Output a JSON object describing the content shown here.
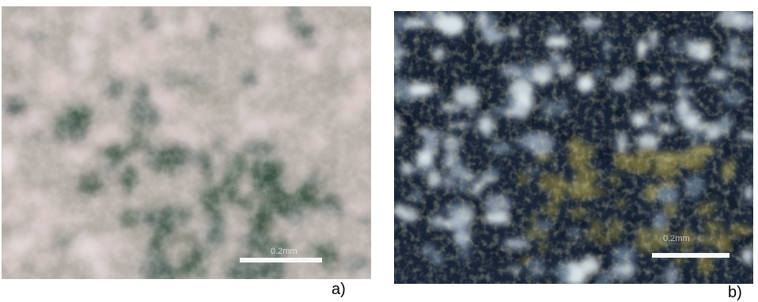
{
  "panels": [
    {
      "id": "a",
      "label": "a)",
      "scale_text": "0.2mm",
      "description_colors": {
        "light": "#d9c9c8",
        "mid": "#a7a49a",
        "dark": "#3d5545",
        "accent": "#5b6b67"
      }
    },
    {
      "id": "b",
      "label": "b)",
      "scale_text": "0.2mm",
      "description_colors": {
        "light": "#d9e4ec",
        "mid": "#6c7f95",
        "dark": "#0d1a2a",
        "accent": "#6f6a3e"
      }
    }
  ]
}
